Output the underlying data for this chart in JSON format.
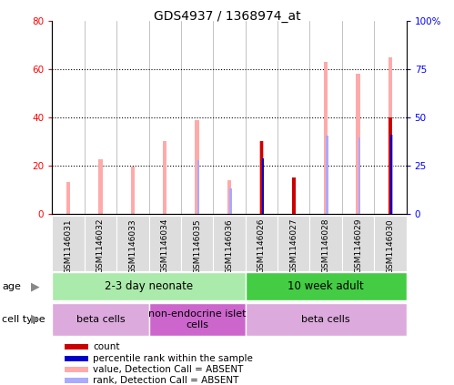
{
  "title": "GDS4937 / 1368974_at",
  "samples": [
    "GSM1146031",
    "GSM1146032",
    "GSM1146033",
    "GSM1146034",
    "GSM1146035",
    "GSM1146036",
    "GSM1146026",
    "GSM1146027",
    "GSM1146028",
    "GSM1146029",
    "GSM1146030"
  ],
  "value_absent": [
    13,
    22.5,
    19.5,
    30,
    39,
    14,
    30,
    0,
    63,
    58,
    65
  ],
  "rank_absent": [
    0,
    0,
    0,
    0,
    28,
    13,
    0,
    0,
    40.5,
    39.5,
    41
  ],
  "count": [
    0,
    0,
    0,
    0,
    0,
    0,
    30,
    15,
    0,
    0,
    40
  ],
  "percentile": [
    0,
    0,
    0,
    0,
    0,
    0,
    28.5,
    0,
    0,
    0,
    41
  ],
  "ylim_left": [
    0,
    80
  ],
  "ylim_right": [
    0,
    100
  ],
  "yticks_left": [
    0,
    20,
    40,
    60,
    80
  ],
  "ytick_labels_left": [
    "0",
    "20",
    "40",
    "60",
    "80"
  ],
  "yticks_right": [
    0,
    25,
    50,
    75,
    100
  ],
  "ytick_labels_right": [
    "0",
    "25",
    "50",
    "75",
    "100%"
  ],
  "color_count": "#cc0000",
  "color_percentile": "#0000cc",
  "color_value_absent": "#ffaaaa",
  "color_rank_absent": "#aaaaff",
  "age_groups": [
    {
      "label": "2-3 day neonate",
      "start": 0,
      "end": 6,
      "color": "#aaeaaa"
    },
    {
      "label": "10 week adult",
      "start": 6,
      "end": 11,
      "color": "#44cc44"
    }
  ],
  "cell_type_groups": [
    {
      "label": "beta cells",
      "start": 0,
      "end": 3,
      "color": "#ddaadd"
    },
    {
      "label": "non-endocrine islet\ncells",
      "start": 3,
      "end": 6,
      "color": "#cc66cc"
    },
    {
      "label": "beta cells",
      "start": 6,
      "end": 11,
      "color": "#ddaadd"
    }
  ],
  "legend_items": [
    {
      "label": "count",
      "color": "#cc0000"
    },
    {
      "label": "percentile rank within the sample",
      "color": "#0000cc"
    },
    {
      "label": "value, Detection Call = ABSENT",
      "color": "#ffaaaa"
    },
    {
      "label": "rank, Detection Call = ABSENT",
      "color": "#aaaaff"
    }
  ]
}
